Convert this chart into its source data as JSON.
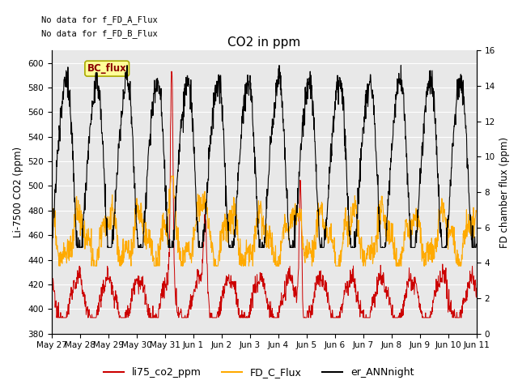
{
  "title": "CO2 in ppm",
  "ylabel_left": "Li-7500 CO2 (ppm)",
  "ylabel_right": "FD chamber flux (ppm)",
  "ylim_left": [
    380,
    610
  ],
  "ylim_right": [
    0,
    16
  ],
  "yticks_left": [
    380,
    400,
    420,
    440,
    460,
    480,
    500,
    520,
    540,
    560,
    580,
    600
  ],
  "yticks_right": [
    0,
    2,
    4,
    6,
    8,
    10,
    12,
    14,
    16
  ],
  "xtick_labels": [
    "May 27",
    "May 28",
    "May 29",
    "May 30",
    "May 31",
    "Jun 1",
    "Jun 2",
    "Jun 3",
    "Jun 4",
    "Jun 5",
    "Jun 6",
    "Jun 7",
    "Jun 8",
    "Jun 9",
    "Jun 10",
    "Jun 11"
  ],
  "color_red": "#cc0000",
  "color_orange": "#ffaa00",
  "color_black": "#000000",
  "color_bg": "#e8e8e8",
  "color_grid": "#ffffff",
  "no_data_text1": "No data for f_FD_A_Flux",
  "no_data_text2": "No data for f_FD_B_Flux",
  "bc_flux_label": "BC_flux",
  "legend_labels": [
    "li75_co2_ppm",
    "FD_C_Flux",
    "er_ANNnight"
  ],
  "n_points": 1400
}
